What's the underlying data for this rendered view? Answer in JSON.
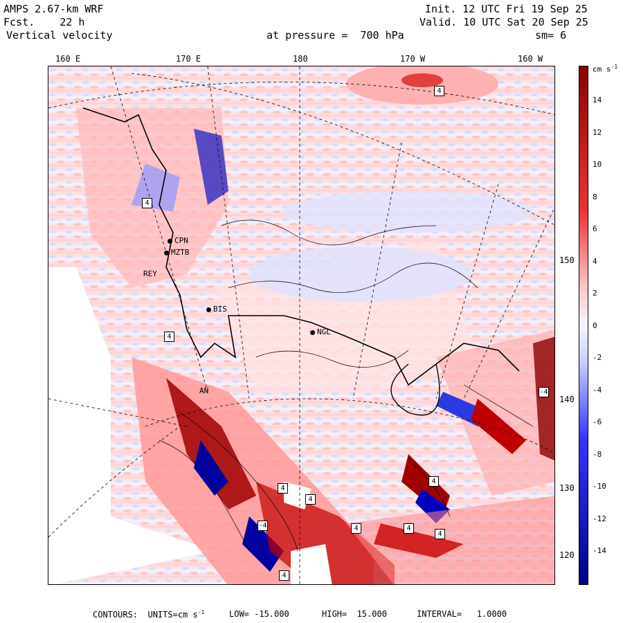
{
  "header": {
    "model": "AMPS 2.67-km WRF",
    "forecast": "Fcst.    22 h",
    "field": "Vertical velocity",
    "init": "Init. 12 UTC Fri 19 Sep 25",
    "valid": "Valid. 10 UTC Sat 20 Sep 25",
    "pressure": "at pressure =  700 hPa",
    "smoothing": "sm= 6"
  },
  "longitude_labels": [
    "160 E",
    "170 E",
    "180",
    "170 W",
    "160 W"
  ],
  "latitude_labels": [
    "150 W",
    "140 W",
    "130 W",
    "120 W"
  ],
  "colorbar": {
    "unit": "cm s",
    "unit_exp": "-1",
    "ticks": [
      "14",
      "12",
      "10",
      "8",
      "6",
      "4",
      "2",
      "0",
      "-2",
      "-4",
      "-6",
      "-8",
      "-10",
      "-12",
      "-14"
    ],
    "colors": {
      "neg_max": "#00008b",
      "neg_mid": "#3333ff",
      "neg_low": "#c8d0ff",
      "zero": "#f4f4ff",
      "pos_low": "#ffc8c8",
      "pos_mid": "#ee3333",
      "pos_max": "#8b0000"
    }
  },
  "stations": [
    "CPN",
    "MZTB",
    "REY",
    "BIS",
    "NGL",
    "AN"
  ],
  "contour_labels": [
    "4",
    "4",
    "4",
    "-4",
    "4",
    "4",
    "4",
    "-4",
    "4",
    "4",
    "4",
    "4"
  ],
  "footer": {
    "contours": "CONTOURS:  UNITS=cm s",
    "unit_exp": "-1",
    "low": "LOW= -15.000",
    "high": "HIGH=  15.000",
    "interval": "INTERVAL=   1.0000"
  }
}
